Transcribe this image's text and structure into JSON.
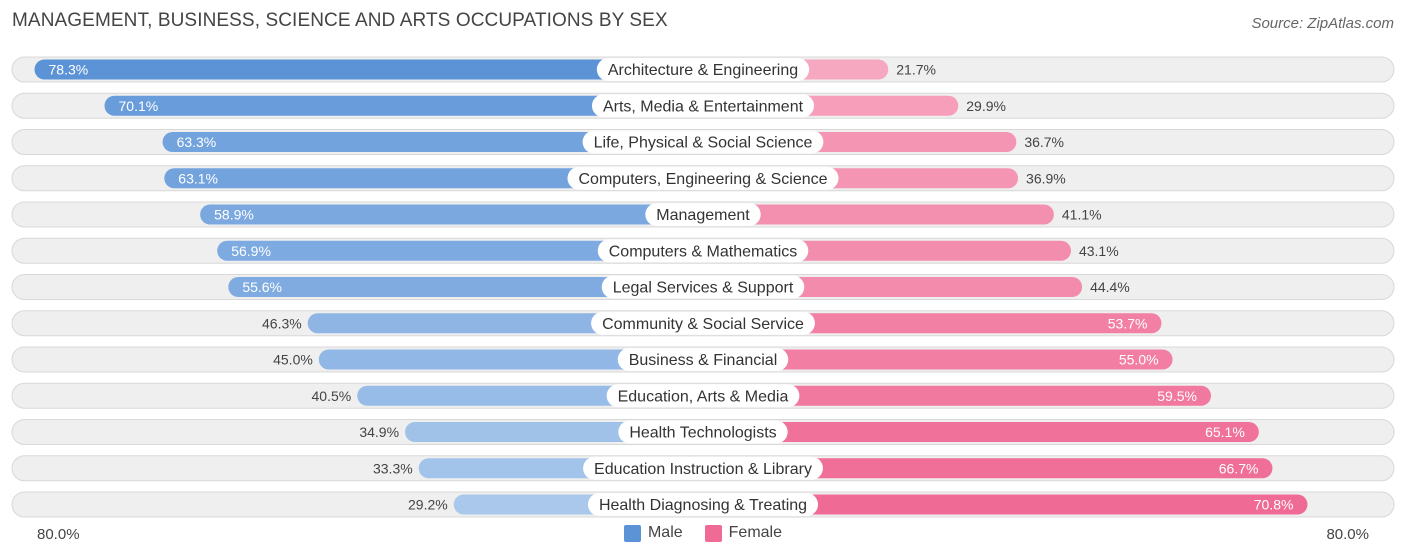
{
  "title": "MANAGEMENT, BUSINESS, SCIENCE AND ARTS OCCUPATIONS BY SEX",
  "source": "Source: ZipAtlas.com",
  "colors": {
    "male_strong": "#5b93d6",
    "male_light": "#a9c8ec",
    "female_strong": "#ef6a94",
    "female_light": "#f7a9c2",
    "row_bg": "#efefef",
    "row_border": "#d8d8d8"
  },
  "chart_data": {
    "type": "bar",
    "orientation": "horizontal-diverging",
    "title": "MANAGEMENT, BUSINESS, SCIENCE AND ARTS OCCUPATIONS BY SEX",
    "categories": [
      "Architecture & Engineering",
      "Arts, Media & Entertainment",
      "Life, Physical & Social Science",
      "Computers, Engineering & Science",
      "Management",
      "Computers & Mathematics",
      "Legal Services & Support",
      "Community & Social Service",
      "Business & Financial",
      "Education, Arts & Media",
      "Health Technologists",
      "Education Instruction & Library",
      "Health Diagnosing & Treating"
    ],
    "series": [
      {
        "name": "Male",
        "values": [
          78.3,
          70.1,
          63.3,
          63.1,
          58.9,
          56.9,
          55.6,
          46.3,
          45.0,
          40.5,
          34.9,
          33.3,
          29.2
        ]
      },
      {
        "name": "Female",
        "values": [
          21.7,
          29.9,
          36.7,
          36.9,
          41.1,
          43.1,
          44.4,
          53.7,
          55.0,
          59.5,
          65.1,
          66.7,
          70.8
        ]
      }
    ],
    "value_labels": {
      "male": [
        "78.3%",
        "70.1%",
        "63.3%",
        "63.1%",
        "58.9%",
        "56.9%",
        "55.6%",
        "46.3%",
        "45.0%",
        "40.5%",
        "34.9%",
        "33.3%",
        "29.2%"
      ],
      "female": [
        "21.7%",
        "29.9%",
        "36.7%",
        "36.9%",
        "41.1%",
        "43.1%",
        "44.4%",
        "53.7%",
        "55.0%",
        "59.5%",
        "65.1%",
        "66.7%",
        "70.8%"
      ]
    },
    "axis_max": 80.0,
    "axis_labels": {
      "left": "80.0%",
      "right": "80.0%"
    },
    "legend": [
      "Male",
      "Female"
    ],
    "legend_position": "bottom-center"
  }
}
